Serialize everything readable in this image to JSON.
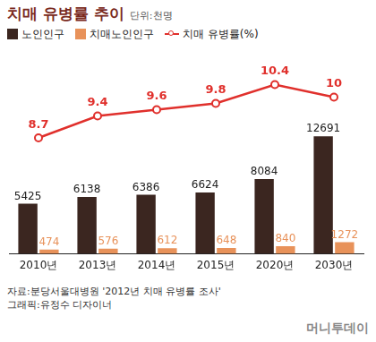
{
  "chart_data": {
    "type": "bar",
    "title": "치매 유병률 추이",
    "unit": "단위:천명",
    "categories": [
      "2010년",
      "2013년",
      "2014년",
      "2015년",
      "2020년",
      "2030년"
    ],
    "series": [
      {
        "name": "노인인구",
        "type": "bar",
        "color": "#3b2620",
        "values": [
          5425,
          6138,
          6386,
          6624,
          8084,
          12691
        ]
      },
      {
        "name": "치매노인인구",
        "type": "bar",
        "color": "#e8925a",
        "values": [
          474,
          576,
          612,
          648,
          840,
          1272
        ]
      },
      {
        "name": "치매 유병률(%)",
        "type": "line",
        "axis": "y2",
        "color": "#e0302c",
        "marker": "circle",
        "values": [
          8.7,
          9.4,
          9.6,
          9.8,
          10.4,
          10
        ]
      }
    ],
    "ylim": [
      0,
      22000
    ],
    "y2lim": [
      5,
      11.5
    ],
    "grid": false,
    "legend": "top",
    "data_labels": true,
    "tick_labels": "x",
    "source": "자료:분당서울대병원 '2012년 치매 유병률 조사'",
    "credit": "그래픽:유정수 디자이너",
    "logo": "머니투데이"
  }
}
